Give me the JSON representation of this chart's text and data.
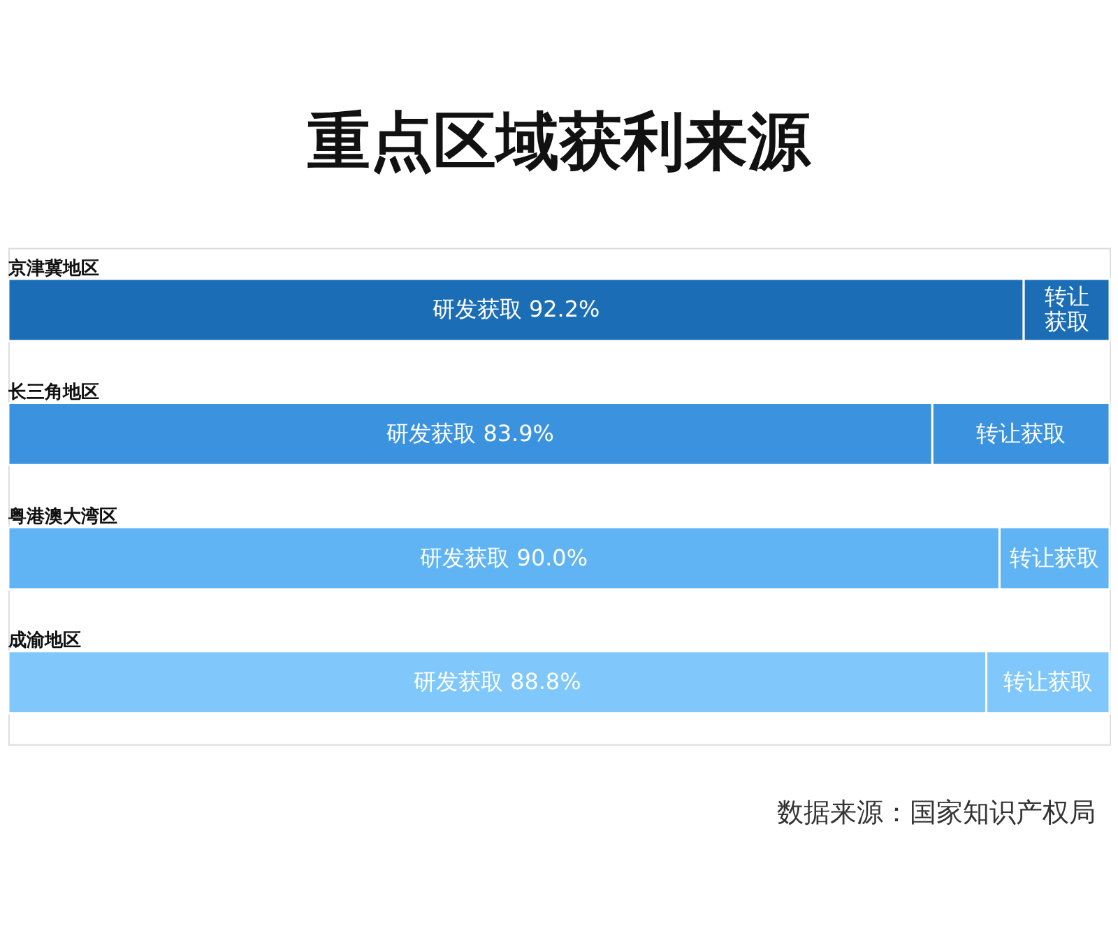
{
  "chart_data": {
    "type": "bar",
    "orientation": "horizontal",
    "stacked": true,
    "title": "重点区域获利来源",
    "categories": [
      "京津冀地区",
      "长三角地区",
      "粤港澳大湾区",
      "成渝地区"
    ],
    "series": [
      {
        "colors": [
          "#1b6db5",
          "#3b93e0",
          "#60b4f4",
          "#80c8fb"
        ],
        "values": [
          92.2,
          83.9,
          90.0,
          88.8
        ],
        "value_labels": [
          "研发获取 92.2%",
          "研发获取 83.9%",
          "研发获取 90.0%",
          "研发获取 88.8%"
        ]
      },
      {
        "colors": [
          "#1b6db5",
          "#3b93e0",
          "#60b4f4",
          "#80c8fb"
        ],
        "values": [
          7.8,
          16.1,
          10.0,
          11.2
        ],
        "value_labels": [
          "转让获取",
          "转让获取",
          "转让获取",
          "转让获取"
        ]
      }
    ],
    "xlim": [
      0,
      100
    ],
    "tick_labels": "y",
    "annotations": [
      "数据来源：国家知识产权局"
    ]
  }
}
